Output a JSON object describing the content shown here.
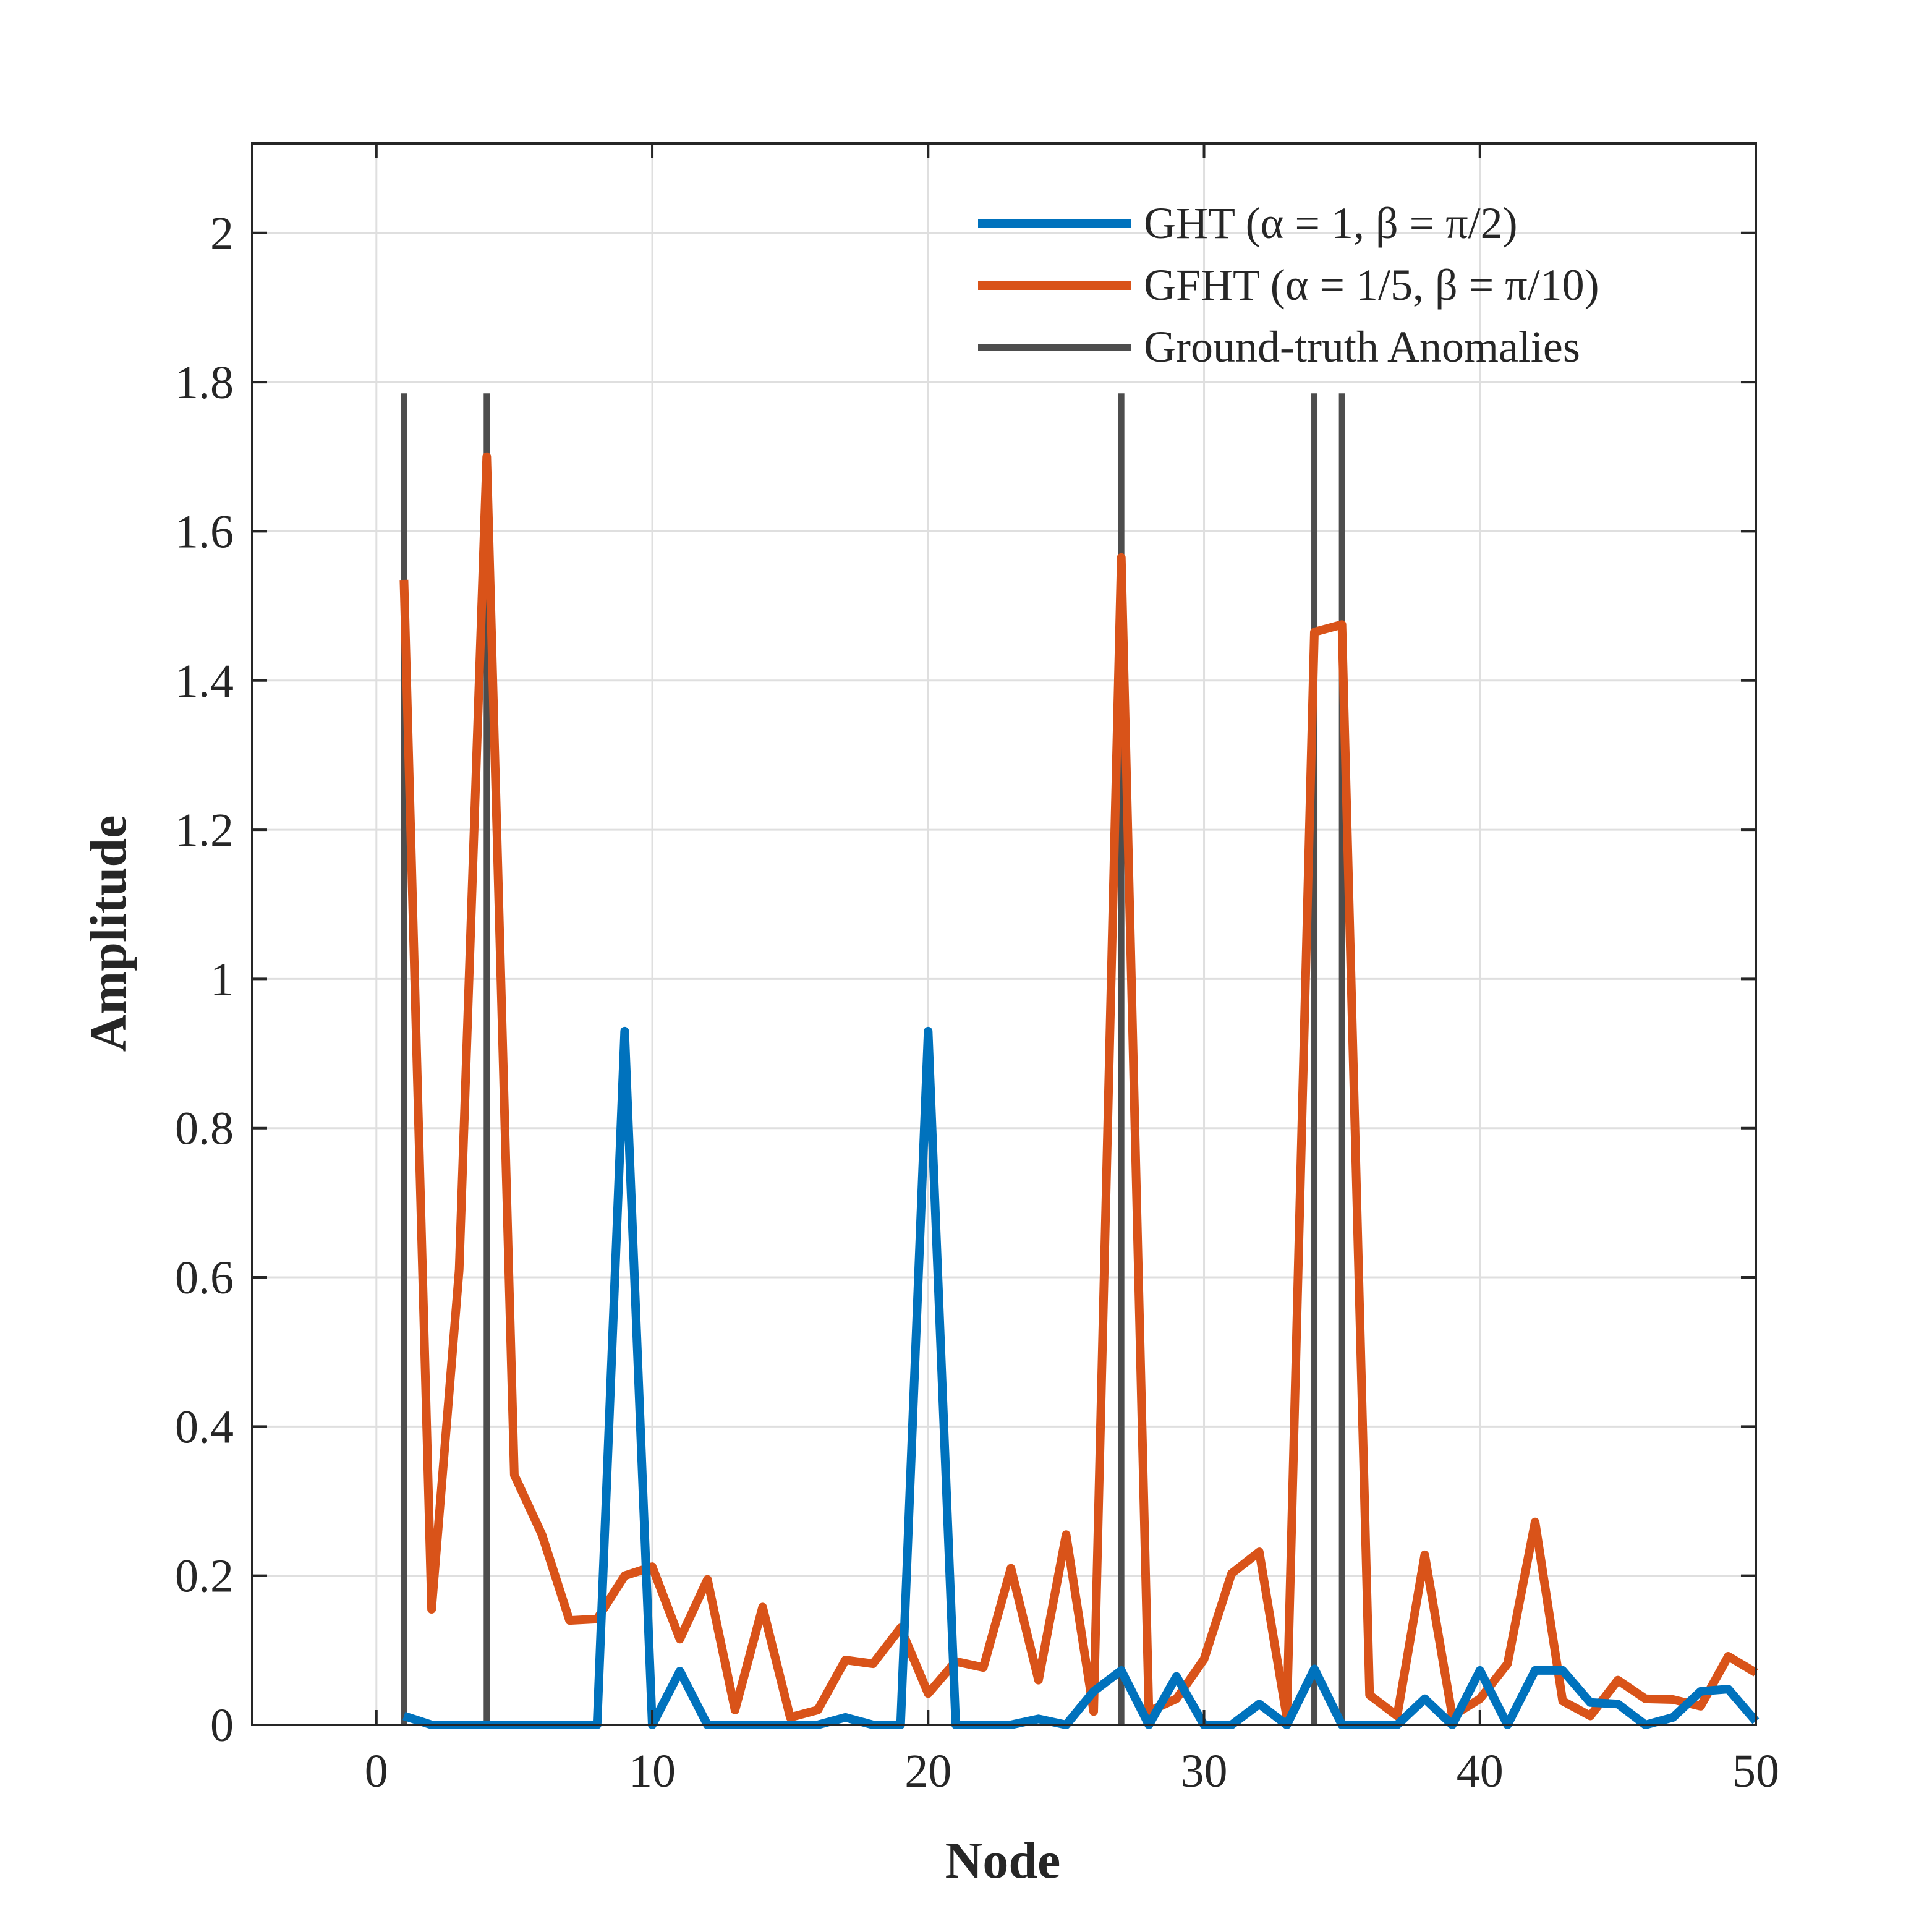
{
  "chart_data": {
    "type": "line",
    "title": "",
    "xlabel": "Node",
    "ylabel": "Amplitude",
    "xlim": [
      -4.5,
      50
    ],
    "ylim": [
      0,
      2.12
    ],
    "xticks": [
      0,
      10,
      20,
      30,
      40,
      50
    ],
    "yticks": [
      0,
      0.2,
      0.4,
      0.6,
      0.8,
      1,
      1.2,
      1.4,
      1.6,
      1.8,
      2
    ],
    "ytick_labels": [
      "0",
      "0.2",
      "0.4",
      "0.6",
      "0.8",
      "1",
      "1.2",
      "1.4",
      "1.6",
      "1.8",
      "2"
    ],
    "grid": true,
    "legend_position": "top-right",
    "legend_entries": [
      {
        "series": "GHT",
        "text": "GHT (α = 1, β = π/2)"
      },
      {
        "series": "GFHT",
        "text": "GFHT (α = 1/5, β = π/10)"
      },
      {
        "series": "Ground-truth Anomalies",
        "text": "Ground-truth Anomalies"
      }
    ],
    "colors": {
      "GHT": "#0072BD",
      "GFHT": "#D95319",
      "Ground-truth Anomalies": "#4D4D4D",
      "axis": "#262626",
      "grid": "#DFDFDF"
    },
    "x": [
      1,
      2,
      3,
      4,
      5,
      6,
      7,
      8,
      9,
      10,
      11,
      12,
      13,
      14,
      15,
      16,
      17,
      18,
      19,
      20,
      21,
      22,
      23,
      24,
      25,
      26,
      27,
      28,
      29,
      30,
      31,
      32,
      33,
      34,
      35,
      36,
      37,
      38,
      39,
      40,
      41,
      42,
      43,
      44,
      45,
      46,
      47,
      48,
      49,
      50
    ],
    "series": [
      {
        "name": "GHT",
        "values": [
          0.012,
          0,
          0,
          0,
          0,
          0,
          0,
          0,
          0.93,
          0,
          0.072,
          0,
          0,
          0,
          0,
          0,
          0.01,
          0,
          0,
          0.93,
          0,
          0,
          0,
          0.008,
          0,
          0.045,
          0.073,
          0,
          0.065,
          0,
          0,
          0.028,
          0,
          0.075,
          0,
          0,
          0,
          0.035,
          0,
          0.073,
          0,
          0.073,
          0.073,
          0.03,
          0.028,
          0,
          0.01,
          0.045,
          0.048,
          0.005
        ]
      },
      {
        "name": "GFHT",
        "values": [
          1.535,
          0.155,
          0.61,
          1.7,
          0.335,
          0.255,
          0.14,
          0.142,
          0.2,
          0.212,
          0.115,
          0.195,
          0.02,
          0.158,
          0.01,
          0.02,
          0.087,
          0.082,
          0.13,
          0.042,
          0.085,
          0.077,
          0.21,
          0.06,
          0.255,
          0.018,
          1.565,
          0.018,
          0.035,
          0.088,
          0.203,
          0.232,
          0.01,
          1.465,
          1.475,
          0.04,
          0.012,
          0.228,
          0.012,
          0.035,
          0.082,
          0.272,
          0.032,
          0.012,
          0.06,
          0.035,
          0.034,
          0.025,
          0.092,
          0.07
        ]
      }
    ],
    "anomalies": {
      "name": "Ground-truth Anomalies",
      "nodes": [
        1,
        4,
        27,
        34,
        35
      ],
      "height": 1.785
    }
  }
}
